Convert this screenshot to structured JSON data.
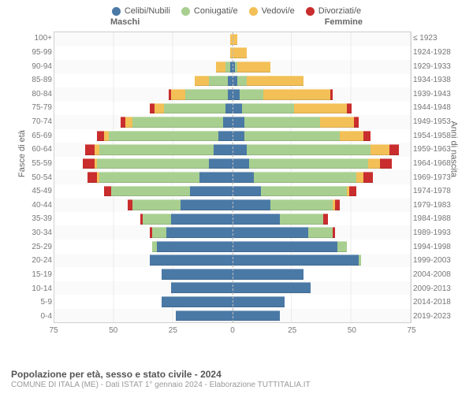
{
  "legend": {
    "items": [
      {
        "label": "Celibi/Nubili",
        "color": "#4a79a6"
      },
      {
        "label": "Coniugati/e",
        "color": "#a8cf8f"
      },
      {
        "label": "Vedovi/e",
        "color": "#f3c057"
      },
      {
        "label": "Divorziati/e",
        "color": "#c92d2d"
      }
    ]
  },
  "chart": {
    "header_male": "Maschi",
    "header_female": "Femmine",
    "axis_left_label": "Fasce di età",
    "axis_right_label": "Anni di nascita",
    "x_max": 75,
    "x_ticks": [
      75,
      50,
      25,
      0,
      25,
      50,
      75
    ],
    "colors": {
      "single": "#4a79a6",
      "married": "#a8cf8f",
      "widowed": "#f3c057",
      "divorced": "#c92d2d"
    },
    "rows": [
      {
        "age": "100+",
        "year": "≤ 1923",
        "m": {
          "s": 0,
          "m": 0,
          "w": 1,
          "d": 0
        },
        "f": {
          "s": 0,
          "m": 0,
          "w": 2,
          "d": 0
        }
      },
      {
        "age": "95-99",
        "year": "1924-1928",
        "m": {
          "s": 0,
          "m": 0,
          "w": 1,
          "d": 0
        },
        "f": {
          "s": 0,
          "m": 0,
          "w": 6,
          "d": 0
        }
      },
      {
        "age": "90-94",
        "year": "1929-1933",
        "m": {
          "s": 1,
          "m": 2,
          "w": 4,
          "d": 0
        },
        "f": {
          "s": 1,
          "m": 1,
          "w": 14,
          "d": 0
        }
      },
      {
        "age": "85-89",
        "year": "1934-1938",
        "m": {
          "s": 2,
          "m": 8,
          "w": 6,
          "d": 0
        },
        "f": {
          "s": 2,
          "m": 4,
          "w": 24,
          "d": 0
        }
      },
      {
        "age": "80-84",
        "year": "1939-1943",
        "m": {
          "s": 2,
          "m": 18,
          "w": 6,
          "d": 1
        },
        "f": {
          "s": 3,
          "m": 10,
          "w": 28,
          "d": 1
        }
      },
      {
        "age": "75-79",
        "year": "1944-1948",
        "m": {
          "s": 3,
          "m": 26,
          "w": 4,
          "d": 2
        },
        "f": {
          "s": 4,
          "m": 22,
          "w": 22,
          "d": 2
        }
      },
      {
        "age": "70-74",
        "year": "1949-1953",
        "m": {
          "s": 4,
          "m": 38,
          "w": 3,
          "d": 2
        },
        "f": {
          "s": 5,
          "m": 32,
          "w": 14,
          "d": 2
        }
      },
      {
        "age": "65-69",
        "year": "1954-1958",
        "m": {
          "s": 6,
          "m": 46,
          "w": 2,
          "d": 3
        },
        "f": {
          "s": 5,
          "m": 40,
          "w": 10,
          "d": 3
        }
      },
      {
        "age": "60-64",
        "year": "1959-1963",
        "m": {
          "s": 8,
          "m": 48,
          "w": 2,
          "d": 4
        },
        "f": {
          "s": 6,
          "m": 52,
          "w": 8,
          "d": 4
        }
      },
      {
        "age": "55-59",
        "year": "1964-1968",
        "m": {
          "s": 10,
          "m": 47,
          "w": 1,
          "d": 5
        },
        "f": {
          "s": 7,
          "m": 50,
          "w": 5,
          "d": 5
        }
      },
      {
        "age": "50-54",
        "year": "1969-1973",
        "m": {
          "s": 14,
          "m": 42,
          "w": 1,
          "d": 4
        },
        "f": {
          "s": 9,
          "m": 43,
          "w": 3,
          "d": 4
        }
      },
      {
        "age": "45-49",
        "year": "1974-1978",
        "m": {
          "s": 18,
          "m": 33,
          "w": 0,
          "d": 3
        },
        "f": {
          "s": 12,
          "m": 36,
          "w": 1,
          "d": 3
        }
      },
      {
        "age": "40-44",
        "year": "1979-1983",
        "m": {
          "s": 22,
          "m": 20,
          "w": 0,
          "d": 2
        },
        "f": {
          "s": 16,
          "m": 26,
          "w": 1,
          "d": 2
        }
      },
      {
        "age": "35-39",
        "year": "1984-1988",
        "m": {
          "s": 26,
          "m": 12,
          "w": 0,
          "d": 1
        },
        "f": {
          "s": 20,
          "m": 18,
          "w": 0,
          "d": 2
        }
      },
      {
        "age": "30-34",
        "year": "1989-1993",
        "m": {
          "s": 28,
          "m": 6,
          "w": 0,
          "d": 1
        },
        "f": {
          "s": 32,
          "m": 10,
          "w": 0,
          "d": 1
        }
      },
      {
        "age": "25-29",
        "year": "1994-1998",
        "m": {
          "s": 32,
          "m": 2,
          "w": 0,
          "d": 0
        },
        "f": {
          "s": 44,
          "m": 4,
          "w": 0,
          "d": 0
        }
      },
      {
        "age": "20-24",
        "year": "1999-2003",
        "m": {
          "s": 35,
          "m": 0,
          "w": 0,
          "d": 0
        },
        "f": {
          "s": 53,
          "m": 1,
          "w": 0,
          "d": 0
        }
      },
      {
        "age": "15-19",
        "year": "2004-2008",
        "m": {
          "s": 30,
          "m": 0,
          "w": 0,
          "d": 0
        },
        "f": {
          "s": 30,
          "m": 0,
          "w": 0,
          "d": 0
        }
      },
      {
        "age": "10-14",
        "year": "2009-2013",
        "m": {
          "s": 26,
          "m": 0,
          "w": 0,
          "d": 0
        },
        "f": {
          "s": 33,
          "m": 0,
          "w": 0,
          "d": 0
        }
      },
      {
        "age": "5-9",
        "year": "2014-2018",
        "m": {
          "s": 30,
          "m": 0,
          "w": 0,
          "d": 0
        },
        "f": {
          "s": 22,
          "m": 0,
          "w": 0,
          "d": 0
        }
      },
      {
        "age": "0-4",
        "year": "2019-2023",
        "m": {
          "s": 24,
          "m": 0,
          "w": 0,
          "d": 0
        },
        "f": {
          "s": 20,
          "m": 0,
          "w": 0,
          "d": 0
        }
      }
    ]
  },
  "footer": {
    "title": "Popolazione per età, sesso e stato civile - 2024",
    "subtitle": "COMUNE DI ITALA (ME) - Dati ISTAT 1° gennaio 2024 - Elaborazione TUTTITALIA.IT"
  }
}
